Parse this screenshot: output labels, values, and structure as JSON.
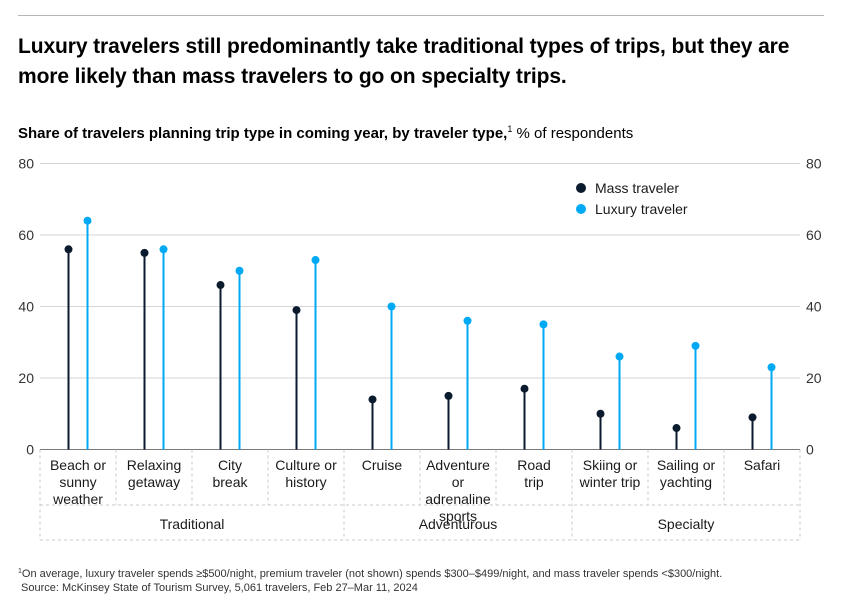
{
  "title": "Luxury travelers still predominantly take traditional types of trips, but they are more likely than mass travelers to go on specialty trips.",
  "subtitle_bold": "Share of travelers planning trip type in coming year, by traveler type,",
  "subtitle_sup": "1",
  "subtitle_rest": " % of respondents",
  "colors": {
    "mass": "#0b1b2e",
    "luxury": "#00a9f4",
    "grid": "#d6d6d6",
    "axis": "#7a7a7a"
  },
  "chart_data": {
    "type": "lollipop",
    "ylim": [
      0,
      80
    ],
    "yticks": [
      "0",
      "20",
      "40",
      "60",
      "80"
    ],
    "categories": [
      "Beach or\nsunny\nweather",
      "Relaxing\ngetaway",
      "City\nbreak",
      "Culture or\nhistory",
      "Cruise",
      "Adventure or\nadrenaline\nsports",
      "Road\ntrip",
      "Skiing or\nwinter trip",
      "Sailing or\nyachting",
      "Safari"
    ],
    "series": [
      {
        "name": "Mass traveler",
        "values": [
          56,
          55,
          46,
          39,
          14,
          15,
          17,
          10,
          6,
          9
        ]
      },
      {
        "name": "Luxury traveler",
        "values": [
          64,
          56,
          50,
          53,
          40,
          36,
          35,
          26,
          29,
          23
        ]
      }
    ],
    "groups": [
      {
        "label": "Traditional",
        "start": 0,
        "end": 3
      },
      {
        "label": "Adventurous",
        "start": 4,
        "end": 6
      },
      {
        "label": "Specialty",
        "start": 7,
        "end": 9
      }
    ],
    "legend_position": "top-right"
  },
  "footnote_sup": "1",
  "footnote_line1": "On average, luxury traveler spends ≥$500/night, premium traveler (not shown) spends $300–$499/night, and mass traveler spends <$300/night.",
  "footnote_line2": "Source: McKinsey State of Tourism Survey, 5,061 travelers, Feb 27–Mar 11, 2024"
}
